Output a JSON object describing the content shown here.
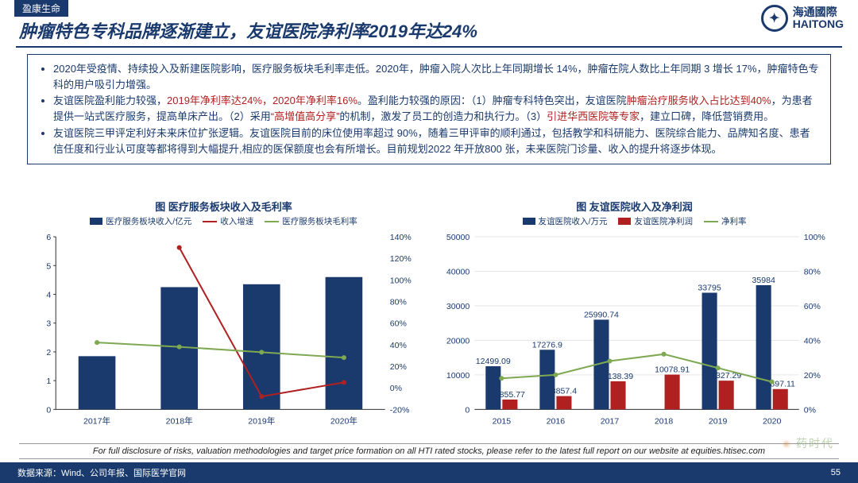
{
  "tab": "盈康生命",
  "brand": {
    "cn": "海通國際",
    "en": "HAITONG"
  },
  "title": "肿瘤特色专科品牌逐渐建立，友谊医院净利率2019年达24%",
  "bullets": [
    {
      "pre": "2020年受疫情、持续投入及新建医院影响，医疗服务板块毛利率走低。2020年，肿瘤入院人次比上年同期增长 14%，肿瘤在院人数比上年同期 3 增长 17%，肿瘤特色专科的用户吸引力增强。"
    },
    {
      "pre": "友谊医院盈利能力较强，",
      "r1": "2019年净利率达24%，2020年净利率16%",
      "mid": "。盈利能力较强的原因：（1）肿瘤专科特色突出，友谊医院",
      "r2": "肿瘤治疗服务收入占比达到40%",
      "mid2": "，为患者提供一站式医疗服务，提高单床产出。（2）采用",
      "r3": "“高增值高分享”",
      "mid3": "的机制，激发了员工的创造力和执行力。（3）",
      "r4": "引进华西医院等专家",
      "post": "，建立口碑，降低营销费用。"
    },
    {
      "pre": "友谊医院三甲评定利好未来床位扩张逻辑。友谊医院目前的床位使用率超过 90%，随着三甲评审的顺利通过，包括教学和科研能力、医院综合能力、品牌知名度、患者信任度和行业认可度等都将得到大幅提升,相应的医保额度也会有所增长。目前规划2022 年开放800 张，未来医院门诊量、收入的提升将逐步体现。"
    }
  ],
  "chart1": {
    "title": "图 医疗服务板块收入及毛利率",
    "legend": [
      "医疗服务板块收入/亿元",
      "收入增速",
      "医疗服务板块毛利率"
    ],
    "categories": [
      "2017年",
      "2018年",
      "2019年",
      "2020年"
    ],
    "bars": [
      1.85,
      4.25,
      4.35,
      4.6
    ],
    "line_red": [
      null,
      130,
      -8,
      5
    ],
    "line_green": [
      42,
      38,
      33,
      28
    ],
    "y_left": {
      "min": 0,
      "max": 6,
      "step": 1
    },
    "y_right": {
      "min": -20,
      "max": 140,
      "step": 20
    },
    "colors": {
      "bar": "#1a3a6e",
      "red": "#b02020",
      "green": "#7fa852",
      "axis": "#333333",
      "grid": "#cccccc"
    }
  },
  "chart2": {
    "title": "图 友谊医院收入及净利润",
    "legend": [
      "友谊医院收入/万元",
      "友谊医院净利润",
      "净利率"
    ],
    "categories": [
      "2015",
      "2016",
      "2017",
      "2018",
      "2019",
      "2020"
    ],
    "rev": [
      12499.09,
      17276.9,
      25990.74,
      null,
      33795,
      35984
    ],
    "rev_label": [
      "12499.09",
      "17276.9",
      "25990.74",
      "",
      "33795",
      "35984"
    ],
    "profit": [
      2855.77,
      3857.4,
      8138.39,
      10078.91,
      8327.29,
      5897.11
    ],
    "profit_label": [
      "2855.77",
      "3857.4",
      "8138.39",
      "10078.91",
      "8327.29",
      "5897.11"
    ],
    "line_green": [
      18,
      20,
      28,
      32,
      24,
      16
    ],
    "y_left": {
      "min": 0,
      "max": 50000,
      "step": 10000
    },
    "y_right": {
      "min": 0,
      "max": 100,
      "step": 20
    },
    "colors": {
      "bar1": "#1a3a6e",
      "bar2": "#b02020",
      "green": "#7fa852",
      "axis": "#333333"
    }
  },
  "footer_note": "For full disclosure of risks, valuation methodologies and target price formation on all HTI rated stocks, please refer to the latest full report on our website at equities.htisec.com",
  "source": "数据来源：Wind、公司年报、国际医学官网",
  "page": "55",
  "watermark": "药时代"
}
